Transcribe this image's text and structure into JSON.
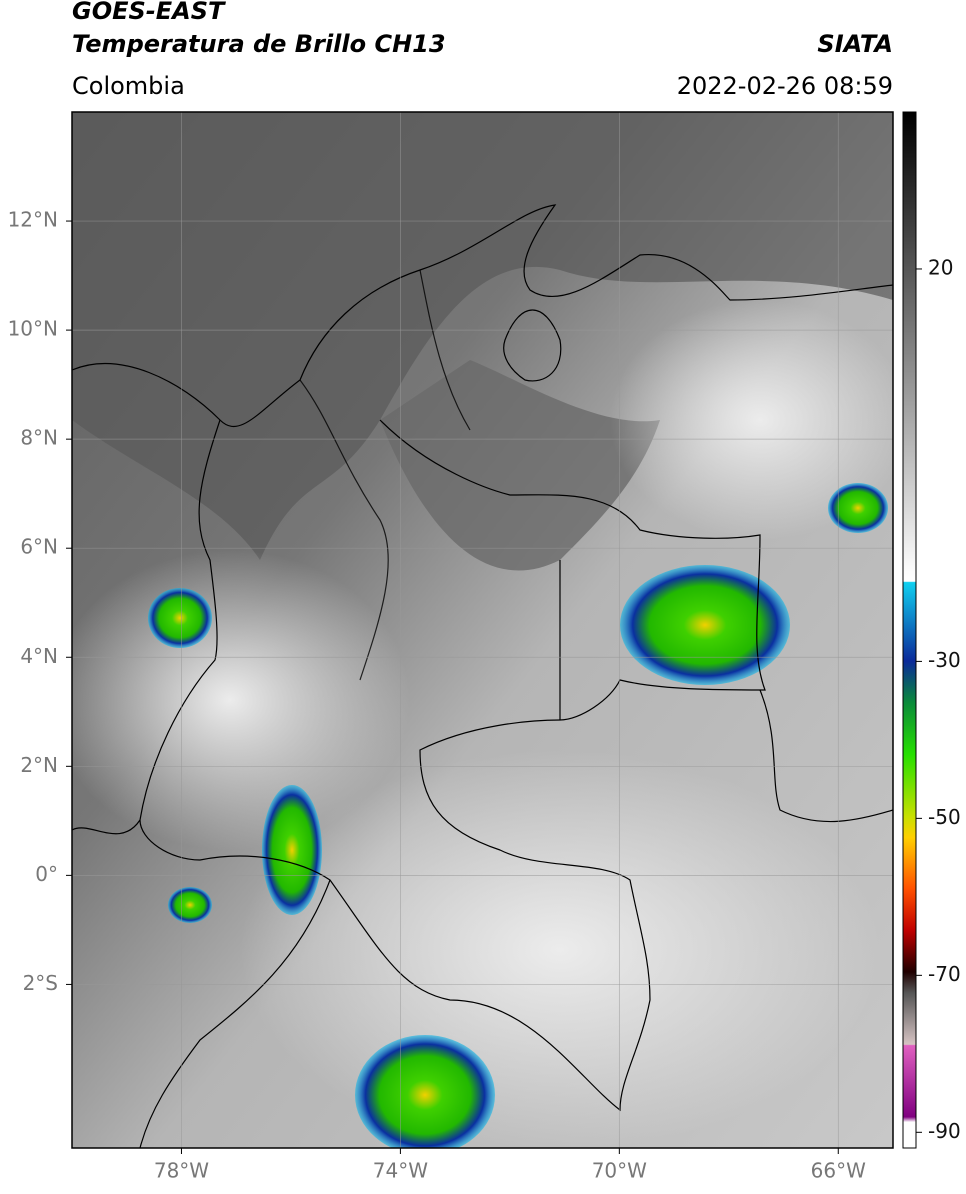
{
  "header": {
    "satellite": "GOES-EAST",
    "product": "Temperatura de Brillo CH13",
    "source": "SIATA",
    "region": "Colombia",
    "datetime": "2022-02-26 08:59"
  },
  "map": {
    "xlim": [
      -80,
      -65
    ],
    "ylim": [
      -5,
      14
    ],
    "grid": true,
    "xticks": [
      {
        "value": -78,
        "label": "78°W"
      },
      {
        "value": -74,
        "label": "74°W"
      },
      {
        "value": -70,
        "label": "70°W"
      },
      {
        "value": -66,
        "label": "66°W"
      }
    ],
    "yticks": [
      {
        "value": 12,
        "label": "12°N"
      },
      {
        "value": 10,
        "label": "10°N"
      },
      {
        "value": 8,
        "label": "8°N"
      },
      {
        "value": 6,
        "label": "6°N"
      },
      {
        "value": 4,
        "label": "4°N"
      },
      {
        "value": 2,
        "label": "2°N"
      },
      {
        "value": 0,
        "label": "0°"
      },
      {
        "value": -2,
        "label": "2°S"
      }
    ]
  },
  "colorbar": {
    "lim": [
      -92,
      40
    ],
    "ticks": [
      20,
      -30,
      -50,
      -70,
      -90
    ]
  }
}
